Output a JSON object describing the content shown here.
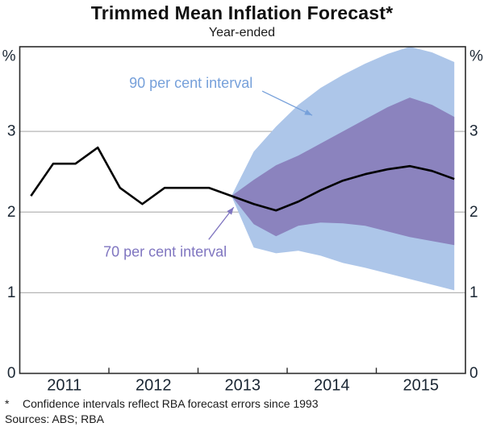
{
  "header": {
    "title": "Trimmed Mean Inflation Forecast*",
    "subtitle": "Year-ended"
  },
  "footer": {
    "footnote_marker": "*",
    "footnote_text": "Confidence intervals reflect RBA forecast errors since 1993",
    "sources": "Sources: ABS; RBA"
  },
  "chart_data": {
    "type": "area",
    "title": "Trimmed Mean Inflation Forecast*",
    "subtitle": "Year-ended",
    "unit_label": "%",
    "grid_on": true,
    "x_axis": {
      "range": [
        2011,
        2016
      ],
      "year_labels": [
        "2011",
        "2012",
        "2013",
        "2014",
        "2015"
      ],
      "tick_boundaries": [
        2012,
        2013,
        2014,
        2015
      ]
    },
    "y_axis": {
      "range": [
        0,
        4.05
      ],
      "ticks": [
        0,
        1,
        2,
        3
      ],
      "tick_labels": [
        "0",
        "1",
        "2",
        "3"
      ],
      "gridlines": [
        1,
        2,
        3
      ]
    },
    "line": {
      "name": "trimmed-mean-inflation-year-ended",
      "color": "#000000",
      "x": [
        2011.125,
        2011.375,
        2011.625,
        2011.875,
        2012.125,
        2012.375,
        2012.625,
        2012.875,
        2013.125,
        2013.375,
        2013.625,
        2013.875,
        2014.125,
        2014.375,
        2014.625,
        2014.875,
        2015.125,
        2015.375,
        2015.625,
        2015.875
      ],
      "values": [
        2.2,
        2.6,
        2.6,
        2.8,
        2.3,
        2.1,
        2.3,
        2.3,
        2.3,
        2.2,
        2.1,
        2.02,
        2.13,
        2.27,
        2.39,
        2.47,
        2.53,
        2.57,
        2.51,
        2.41
      ]
    },
    "bands": [
      {
        "name": "90 per cent interval",
        "color": "#adc6e9",
        "x": [
          2013.375,
          2013.625,
          2013.875,
          2014.125,
          2014.375,
          2014.625,
          2014.875,
          2015.125,
          2015.375,
          2015.625,
          2015.875
        ],
        "upper": [
          2.2,
          2.75,
          3.06,
          3.33,
          3.54,
          3.7,
          3.84,
          3.96,
          4.05,
          3.98,
          3.86
        ],
        "lower": [
          2.2,
          1.56,
          1.49,
          1.52,
          1.46,
          1.37,
          1.31,
          1.24,
          1.17,
          1.1,
          1.03
        ]
      },
      {
        "name": "70 per cent interval",
        "color": "#8b83be",
        "x": [
          2013.375,
          2013.625,
          2013.875,
          2014.125,
          2014.375,
          2014.625,
          2014.875,
          2015.125,
          2015.375,
          2015.625,
          2015.875
        ],
        "upper": [
          2.2,
          2.4,
          2.58,
          2.7,
          2.85,
          3.0,
          3.15,
          3.3,
          3.42,
          3.33,
          3.18
        ],
        "lower": [
          2.2,
          1.85,
          1.7,
          1.83,
          1.87,
          1.86,
          1.83,
          1.76,
          1.69,
          1.64,
          1.59
        ]
      }
    ],
    "annotations": [
      {
        "id": "band90-label",
        "text": "90 per cent interval",
        "color": "#76a0da",
        "text_x": 2012.92,
        "text_y": 3.6,
        "arrow_from": [
          2013.72,
          3.5
        ],
        "arrow_to": [
          2014.28,
          3.2
        ]
      },
      {
        "id": "band70-label",
        "text": "70 per cent interval",
        "color": "#7f75c0",
        "text_x": 2012.63,
        "text_y": 1.51,
        "arrow_from": [
          2013.12,
          1.66
        ],
        "arrow_to": [
          2013.4,
          2.06
        ]
      }
    ],
    "style": {
      "gridline_color": "#b5b5b5",
      "frame_color": "#2b2b2b",
      "axis_text_color": "#1a2633",
      "line_width": 2.6
    }
  }
}
